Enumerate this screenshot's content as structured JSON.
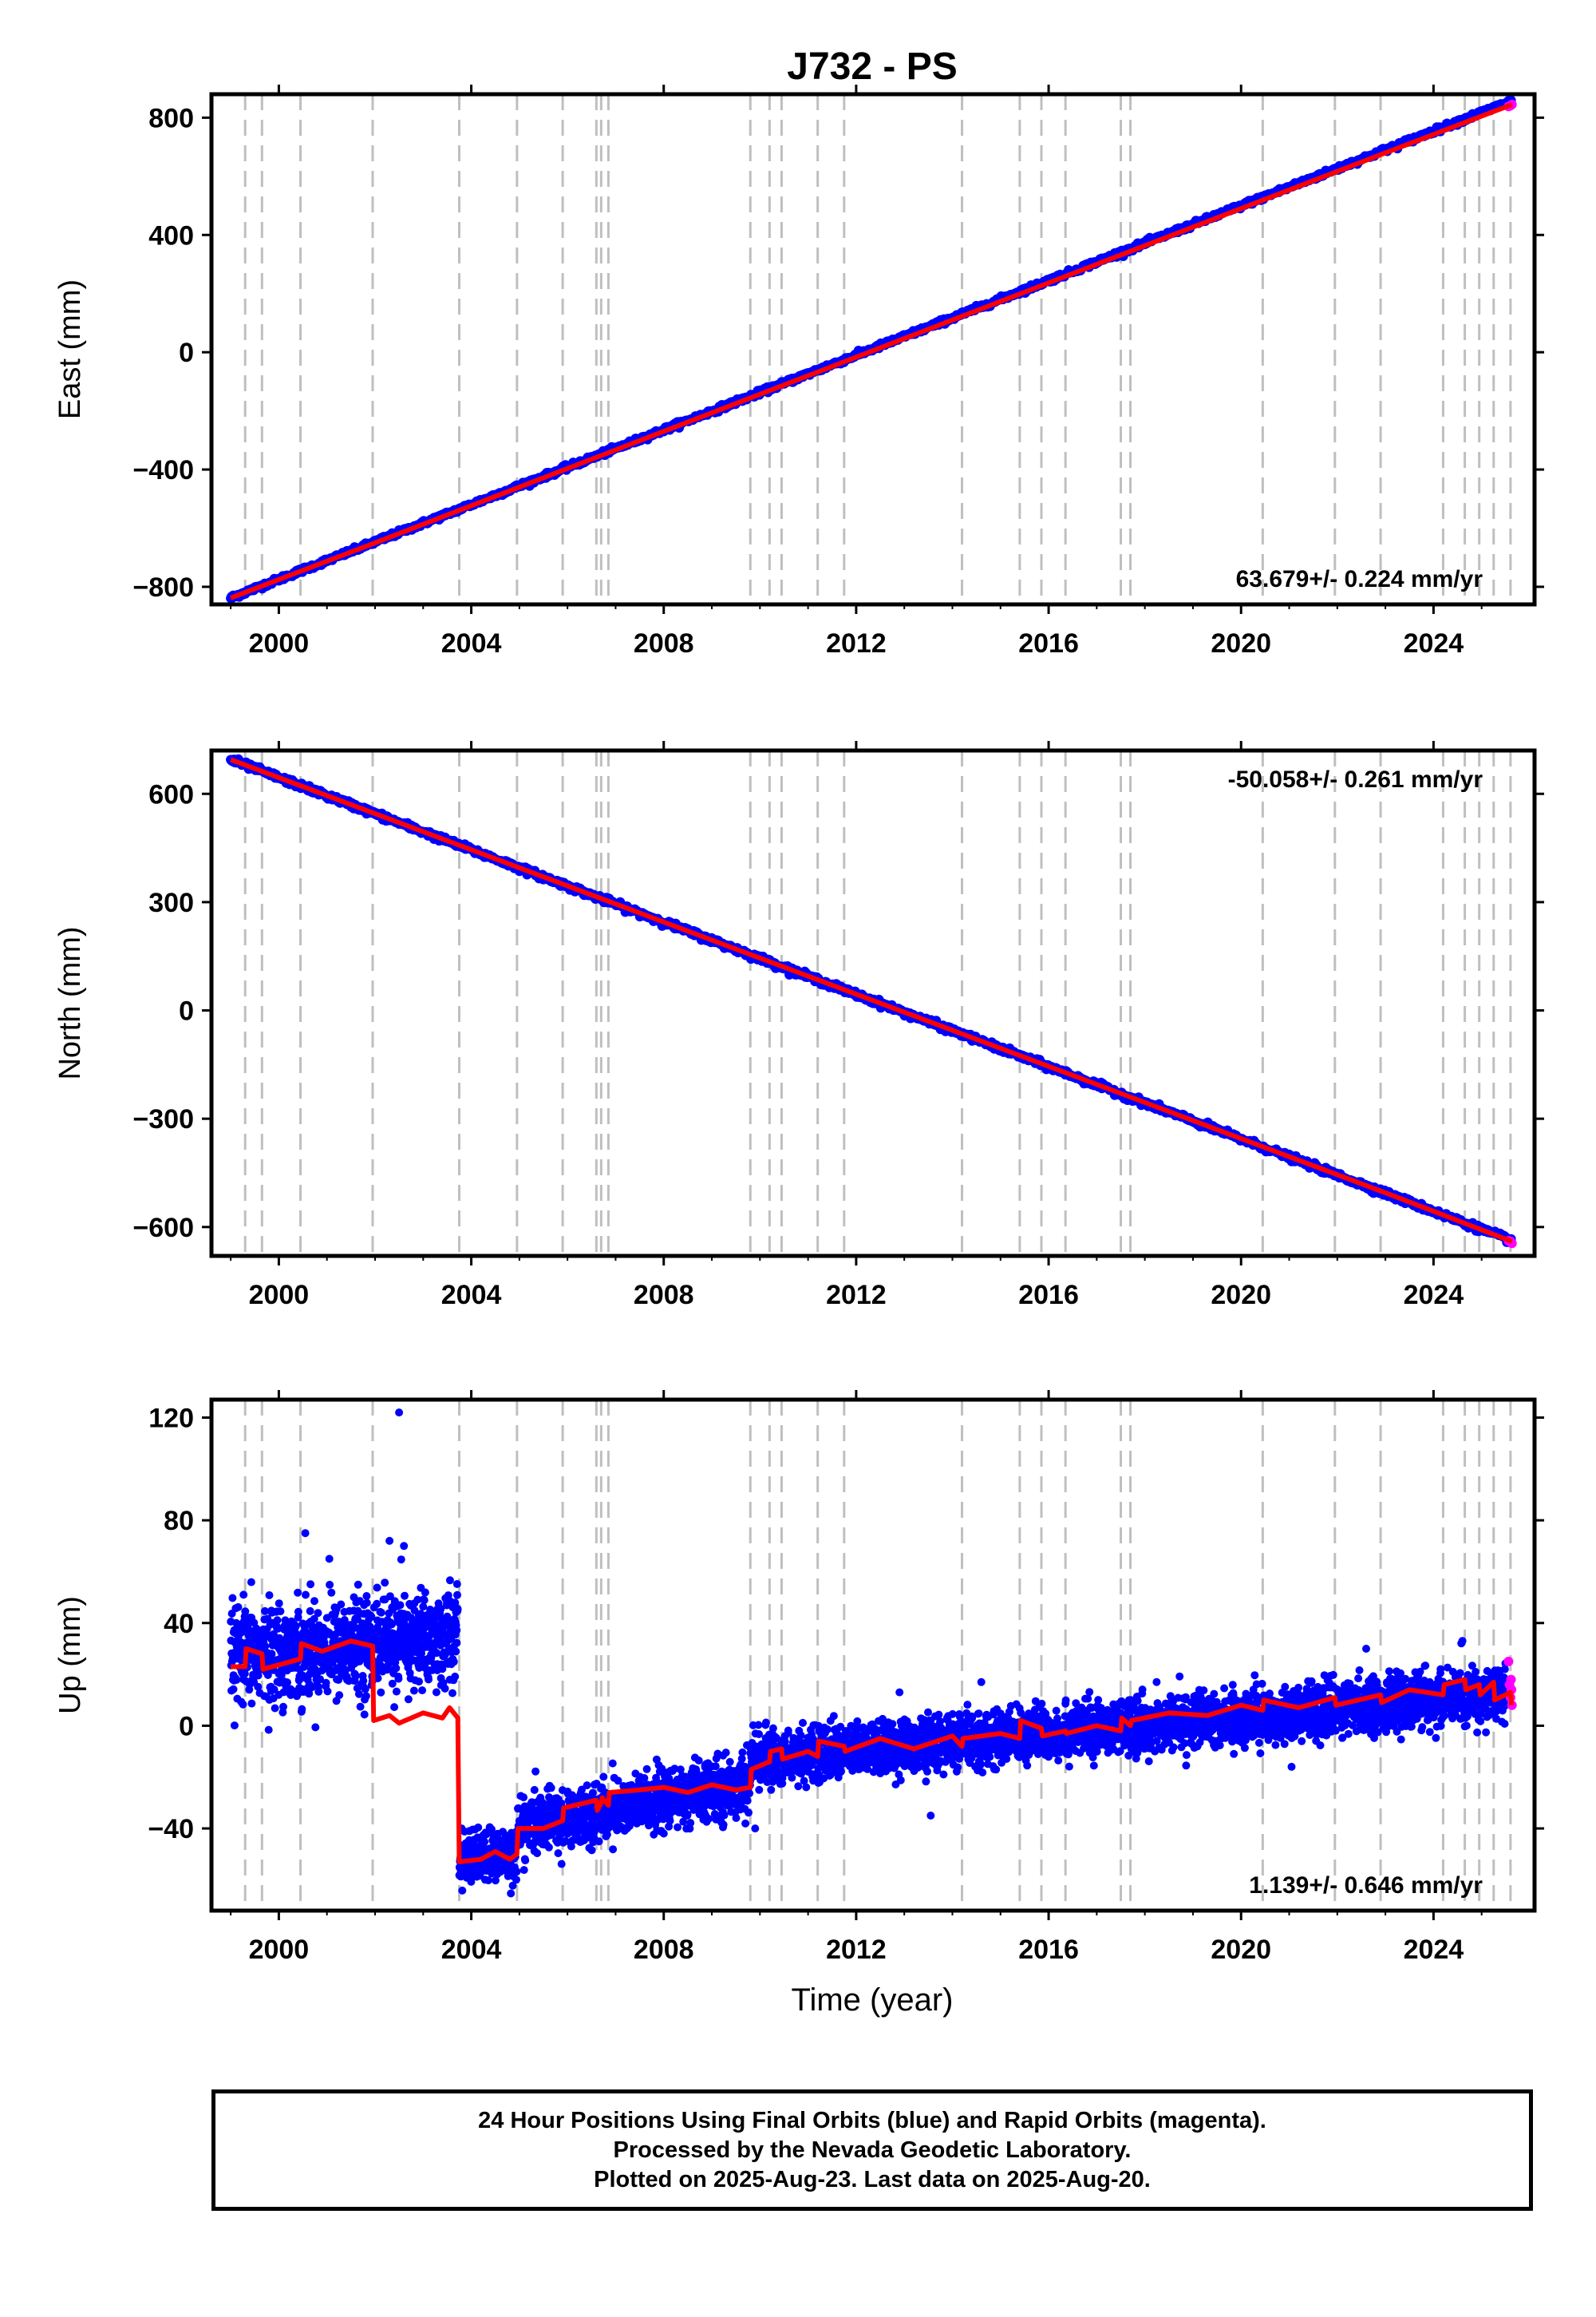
{
  "chart_data": {
    "title": "J732 - PS",
    "type": "scatter",
    "xlabel": "Time (year)",
    "xlim": [
      1998.6,
      2026.1
    ],
    "xticks": [
      2000,
      2004,
      2008,
      2012,
      2016,
      2020,
      2024
    ],
    "equipment_change_years": [
      1999.3,
      1999.65,
      2000.45,
      2001.95,
      2003.75,
      2004.95,
      2005.9,
      2006.6,
      2006.7,
      2006.85,
      2009.8,
      2010.2,
      2010.45,
      2011.2,
      2011.75,
      2014.2,
      2015.4,
      2015.85,
      2016.35,
      2017.5,
      2017.7,
      2020.45,
      2021.95,
      2022.9,
      2024.2,
      2024.65,
      2024.95,
      2025.25,
      2025.6
    ],
    "colors": {
      "final_orbits": "#0000ff",
      "rapid_orbits": "#ff00ff",
      "model": "#ff0000",
      "event_lines": "#bfbfbf",
      "frame": "#000000"
    },
    "panels": [
      {
        "id": "east",
        "ylabel": "East (mm)",
        "ylim": [
          -860,
          880
        ],
        "yticks": [
          -800,
          -400,
          0,
          400,
          800
        ],
        "rate_label": "63.679+/- 0.224 mm/yr",
        "rate_position": "bottom-right",
        "start_year": 1999.0,
        "end_year": 2025.63,
        "start_value": -838,
        "rate_mm_per_yr": 63.679,
        "scatter_sd": 4,
        "model": [
          [
            1999.0,
            -838
          ],
          [
            2002.0,
            -650
          ],
          [
            2005.0,
            -460
          ],
          [
            2008.0,
            -270
          ],
          [
            2011.0,
            -80
          ],
          [
            2014.0,
            110
          ],
          [
            2017.0,
            300
          ],
          [
            2020.0,
            490
          ],
          [
            2023.0,
            680
          ],
          [
            2025.63,
            845
          ]
        ],
        "rapid_points": [
          [
            2025.56,
            838
          ],
          [
            2025.6,
            841
          ],
          [
            2025.63,
            845
          ]
        ]
      },
      {
        "id": "north",
        "ylabel": "North (mm)",
        "ylim": [
          -680,
          720
        ],
        "yticks": [
          -600,
          -300,
          0,
          300,
          600
        ],
        "rate_label": "-50.058+/- 0.261 mm/yr",
        "rate_position": "top-right",
        "start_year": 1999.0,
        "end_year": 2025.63,
        "start_value": 695,
        "rate_mm_per_yr": -50.058,
        "scatter_sd": 4,
        "model": [
          [
            1999.0,
            695
          ],
          [
            2002.0,
            545
          ],
          [
            2005.0,
            395
          ],
          [
            2008.0,
            245
          ],
          [
            2011.0,
            95
          ],
          [
            2014.0,
            -55
          ],
          [
            2017.0,
            -205
          ],
          [
            2020.0,
            -355
          ],
          [
            2023.0,
            -505
          ],
          [
            2025.63,
            -640
          ]
        ],
        "rapid_points": [
          [
            2025.56,
            -638
          ],
          [
            2025.6,
            -640
          ],
          [
            2025.63,
            -645
          ]
        ]
      },
      {
        "id": "up",
        "ylabel": "Up (mm)",
        "ylim": [
          -72,
          127
        ],
        "yticks": [
          -40,
          0,
          40,
          80,
          120
        ],
        "rate_label": "1.139+/- 0.646 mm/yr",
        "rate_position": "bottom-right",
        "segments": [
          {
            "start": 1999.0,
            "end": 2003.72,
            "base": 27,
            "slope": 1.6,
            "sd": 9
          },
          {
            "start": 2003.75,
            "end": 2004.95,
            "base": -52,
            "slope": 2.0,
            "sd": 5
          },
          {
            "start": 2004.95,
            "end": 2009.8,
            "base": -40,
            "slope": 3.6,
            "sd": 5.5
          },
          {
            "start": 2009.8,
            "end": 2025.5,
            "base": -13,
            "slope": 1.6,
            "sd": 5
          }
        ],
        "outliers": [
          [
            2002.5,
            122
          ],
          [
            2000.55,
            75
          ],
          [
            2001.05,
            65
          ],
          [
            2002.3,
            72
          ],
          [
            2002.6,
            70
          ],
          [
            2013.55,
            -35
          ],
          [
            2009.9,
            -40
          ],
          [
            2012.9,
            13
          ],
          [
            2014.6,
            17
          ],
          [
            2022.6,
            30
          ],
          [
            2024.6,
            33
          ],
          [
            2011.55,
            -18
          ],
          [
            2019.85,
            -11
          ],
          [
            2021.05,
            -16
          ]
        ],
        "model": [
          [
            1999.0,
            23
          ],
          [
            1999.3,
            23
          ],
          [
            1999.32,
            30
          ],
          [
            1999.65,
            28
          ],
          [
            1999.67,
            22
          ],
          [
            2000.45,
            26
          ],
          [
            2000.47,
            32
          ],
          [
            2000.9,
            29
          ],
          [
            2001.5,
            33
          ],
          [
            2001.95,
            31
          ],
          [
            2001.97,
            2
          ],
          [
            2002.3,
            4
          ],
          [
            2002.5,
            1
          ],
          [
            2003.0,
            5
          ],
          [
            2003.4,
            3
          ],
          [
            2003.55,
            7
          ],
          [
            2003.72,
            3
          ],
          [
            2003.75,
            -53
          ],
          [
            2004.2,
            -52
          ],
          [
            2004.5,
            -49
          ],
          [
            2004.8,
            -52
          ],
          [
            2004.95,
            -50
          ],
          [
            2004.97,
            -40
          ],
          [
            2005.5,
            -40
          ],
          [
            2005.9,
            -37
          ],
          [
            2005.92,
            -32
          ],
          [
            2006.6,
            -29
          ],
          [
            2006.62,
            -33
          ],
          [
            2006.7,
            -30
          ],
          [
            2006.72,
            -28
          ],
          [
            2006.85,
            -31
          ],
          [
            2006.87,
            -26
          ],
          [
            2007.5,
            -25
          ],
          [
            2008.0,
            -24
          ],
          [
            2008.5,
            -26
          ],
          [
            2009.0,
            -23
          ],
          [
            2009.5,
            -25
          ],
          [
            2009.8,
            -24
          ],
          [
            2009.82,
            -17
          ],
          [
            2010.2,
            -14
          ],
          [
            2010.22,
            -10
          ],
          [
            2010.45,
            -9
          ],
          [
            2010.47,
            -13
          ],
          [
            2011.0,
            -10
          ],
          [
            2011.2,
            -12
          ],
          [
            2011.22,
            -6
          ],
          [
            2011.75,
            -8
          ],
          [
            2011.77,
            -10
          ],
          [
            2012.5,
            -5
          ],
          [
            2013.2,
            -9
          ],
          [
            2014.0,
            -4
          ],
          [
            2014.2,
            -8
          ],
          [
            2014.22,
            -5
          ],
          [
            2015.0,
            -3
          ],
          [
            2015.4,
            -5
          ],
          [
            2015.42,
            2
          ],
          [
            2015.85,
            -1
          ],
          [
            2015.87,
            -4
          ],
          [
            2016.35,
            -2
          ],
          [
            2016.37,
            -3
          ],
          [
            2017.0,
            0
          ],
          [
            2017.5,
            -2
          ],
          [
            2017.52,
            3
          ],
          [
            2017.7,
            0
          ],
          [
            2017.72,
            2
          ],
          [
            2018.5,
            5
          ],
          [
            2019.3,
            4
          ],
          [
            2020.0,
            8
          ],
          [
            2020.45,
            6
          ],
          [
            2020.47,
            10
          ],
          [
            2021.2,
            7
          ],
          [
            2021.95,
            11
          ],
          [
            2021.97,
            8
          ],
          [
            2022.9,
            12
          ],
          [
            2022.92,
            9
          ],
          [
            2023.5,
            14
          ],
          [
            2024.2,
            12
          ],
          [
            2024.22,
            16
          ],
          [
            2024.65,
            18
          ],
          [
            2024.67,
            14
          ],
          [
            2024.95,
            16
          ],
          [
            2024.97,
            12
          ],
          [
            2025.25,
            17
          ],
          [
            2025.27,
            10
          ],
          [
            2025.6,
            13
          ],
          [
            2025.62,
            8
          ]
        ],
        "rapid_points": [
          [
            2025.56,
            25
          ],
          [
            2025.58,
            16
          ],
          [
            2025.6,
            11
          ],
          [
            2025.61,
            18
          ],
          [
            2025.63,
            8
          ],
          [
            2025.62,
            14
          ]
        ]
      }
    ]
  },
  "footer": {
    "line1": "24 Hour Positions Using Final Orbits (blue) and Rapid Orbits (magenta).",
    "line2": "Processed by the Nevada Geodetic Laboratory.",
    "line3": "Plotted on 2025-Aug-23. Last data on 2025-Aug-20."
  }
}
